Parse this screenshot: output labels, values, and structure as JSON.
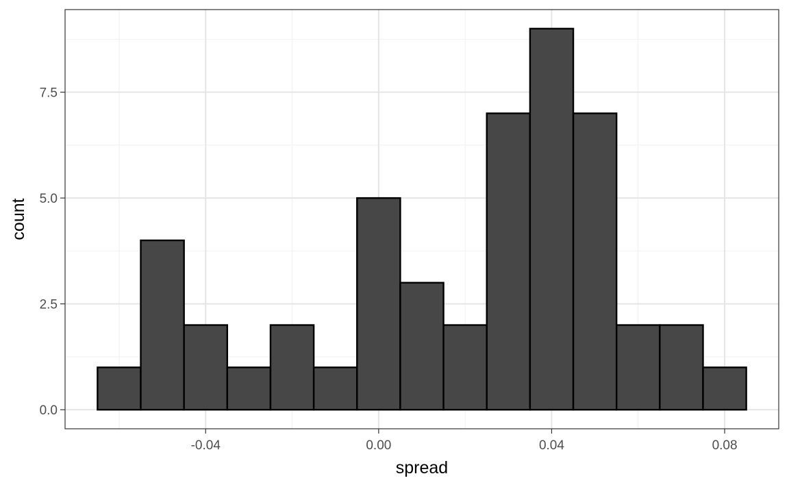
{
  "chart_data": {
    "type": "bar",
    "subtype": "histogram",
    "title": "",
    "xlabel": "spread",
    "ylabel": "count",
    "xlim": [
      -0.0725,
      0.0925
    ],
    "ylim": [
      -0.45,
      9.45
    ],
    "bin_width": 0.01,
    "bins": [
      {
        "center": -0.06,
        "count": 1
      },
      {
        "center": -0.05,
        "count": 4
      },
      {
        "center": -0.04,
        "count": 2
      },
      {
        "center": -0.03,
        "count": 1
      },
      {
        "center": -0.02,
        "count": 2
      },
      {
        "center": -0.01,
        "count": 1
      },
      {
        "center": 0.0,
        "count": 5
      },
      {
        "center": 0.01,
        "count": 3
      },
      {
        "center": 0.02,
        "count": 2
      },
      {
        "center": 0.03,
        "count": 7
      },
      {
        "center": 0.04,
        "count": 9
      },
      {
        "center": 0.05,
        "count": 7
      },
      {
        "center": 0.06,
        "count": 2
      },
      {
        "center": 0.07,
        "count": 2
      },
      {
        "center": 0.08,
        "count": 1
      }
    ],
    "x_ticks": [
      {
        "value": -0.04,
        "label": "-0.04"
      },
      {
        "value": 0.0,
        "label": "0.00"
      },
      {
        "value": 0.04,
        "label": "0.04"
      },
      {
        "value": 0.08,
        "label": "0.08"
      }
    ],
    "x_minor_ticks": [
      -0.06,
      -0.02,
      0.02,
      0.06
    ],
    "y_ticks": [
      {
        "value": 0.0,
        "label": "0.0"
      },
      {
        "value": 2.5,
        "label": "2.5"
      },
      {
        "value": 5.0,
        "label": "5.0"
      },
      {
        "value": 7.5,
        "label": "7.5"
      }
    ],
    "y_minor_ticks": [
      1.25,
      3.75,
      6.25,
      8.75
    ],
    "grid": true,
    "legend": "none",
    "colors": {
      "bar_fill": "#474747",
      "bar_stroke": "#000000",
      "grid_major": "#e5e5e5",
      "grid_minor": "#f2f2f2",
      "panel_border": "#333333",
      "tick_text": "#4d4d4d"
    }
  }
}
